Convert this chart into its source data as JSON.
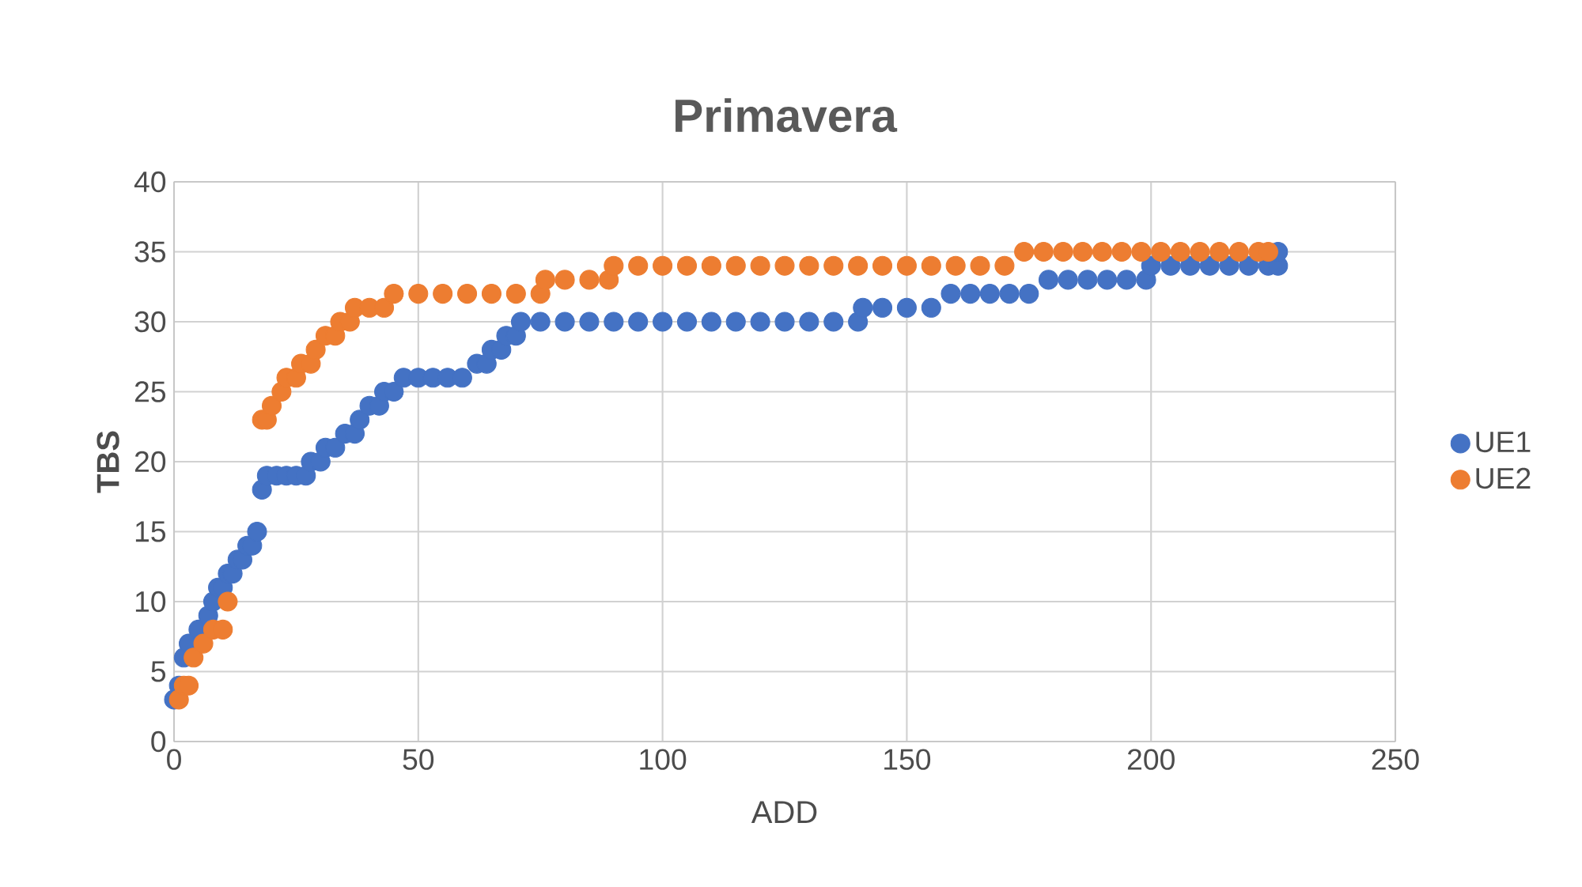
{
  "chart_data": {
    "type": "scatter",
    "title": "Primavera",
    "xlabel": "ADD",
    "ylabel": "TBS",
    "xlim": [
      0,
      250
    ],
    "xticks": [
      0,
      50,
      100,
      150,
      200,
      250
    ],
    "ylim": [
      0,
      40
    ],
    "yticks": [
      0,
      5,
      10,
      15,
      20,
      25,
      30,
      35,
      40
    ],
    "grid": true,
    "legend": "right",
    "marker": "circle",
    "series": [
      {
        "name": "UE1",
        "color": "#4472c4",
        "x": [
          0,
          1,
          2,
          3,
          5,
          7,
          8,
          9,
          10,
          11,
          12,
          13,
          14,
          15,
          16,
          17,
          18,
          19,
          21,
          23,
          25,
          27,
          28,
          30,
          31,
          33,
          35,
          37,
          38,
          40,
          42,
          43,
          45,
          47,
          50,
          53,
          56,
          59,
          62,
          64,
          65,
          67,
          68,
          70,
          71,
          75,
          80,
          85,
          90,
          95,
          100,
          105,
          110,
          115,
          120,
          125,
          130,
          135,
          140,
          141,
          145,
          150,
          155,
          159,
          163,
          167,
          171,
          175,
          179,
          183,
          187,
          191,
          195,
          199,
          200,
          204,
          208,
          212,
          216,
          220,
          224,
          226,
          226
        ],
        "values": [
          3,
          4,
          6,
          7,
          8,
          9,
          10,
          11,
          11,
          12,
          12,
          13,
          13,
          14,
          14,
          15,
          18,
          19,
          19,
          19,
          19,
          19,
          20,
          20,
          21,
          21,
          22,
          22,
          23,
          24,
          24,
          25,
          25,
          26,
          26,
          26,
          26,
          26,
          27,
          27,
          28,
          28,
          29,
          29,
          30,
          30,
          30,
          30,
          30,
          30,
          30,
          30,
          30,
          30,
          30,
          30,
          30,
          30,
          30,
          31,
          31,
          31,
          31,
          32,
          32,
          32,
          32,
          32,
          33,
          33,
          33,
          33,
          33,
          33,
          34,
          34,
          34,
          34,
          34,
          34,
          34,
          34,
          35
        ]
      },
      {
        "name": "UE2",
        "color": "#ed7d31",
        "x": [
          1,
          2,
          3,
          4,
          6,
          8,
          10,
          11,
          18,
          19,
          20,
          22,
          23,
          25,
          26,
          28,
          29,
          31,
          33,
          34,
          36,
          37,
          40,
          43,
          45,
          50,
          55,
          60,
          65,
          70,
          75,
          76,
          80,
          85,
          89,
          90,
          95,
          100,
          105,
          110,
          115,
          120,
          125,
          130,
          135,
          140,
          145,
          150,
          155,
          160,
          165,
          170,
          174,
          178,
          182,
          186,
          190,
          194,
          198,
          202,
          206,
          210,
          214,
          218,
          222,
          224
        ],
        "values": [
          3,
          4,
          4,
          6,
          7,
          8,
          8,
          10,
          23,
          23,
          24,
          25,
          26,
          26,
          27,
          27,
          28,
          29,
          29,
          30,
          30,
          31,
          31,
          31,
          32,
          32,
          32,
          32,
          32,
          32,
          32,
          33,
          33,
          33,
          33,
          34,
          34,
          34,
          34,
          34,
          34,
          34,
          34,
          34,
          34,
          34,
          34,
          34,
          34,
          34,
          34,
          34,
          35,
          35,
          35,
          35,
          35,
          35,
          35,
          35,
          35,
          35,
          35,
          35,
          35,
          35
        ]
      }
    ]
  }
}
